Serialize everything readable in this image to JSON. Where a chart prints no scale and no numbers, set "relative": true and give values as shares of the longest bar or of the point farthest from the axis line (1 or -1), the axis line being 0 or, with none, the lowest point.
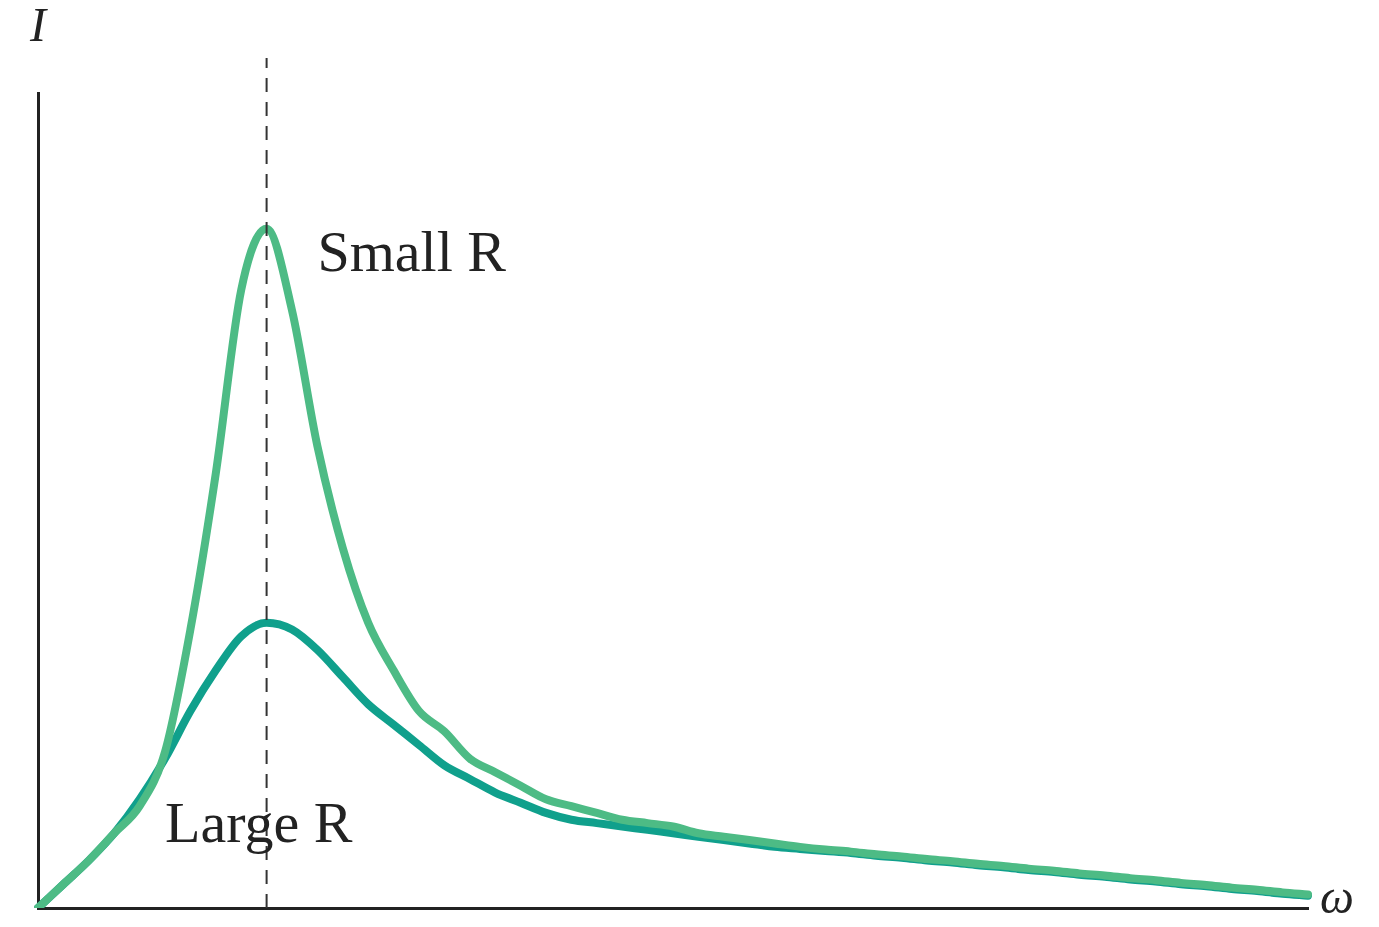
{
  "chart_data": {
    "type": "line",
    "relative": true,
    "xlabel": "ω",
    "ylabel": "I",
    "categories": [
      null,
      null,
      null,
      null,
      null,
      null,
      null,
      null,
      null,
      null,
      null,
      null,
      null,
      null,
      null,
      null,
      null,
      null,
      null,
      null,
      null,
      null,
      null,
      null,
      null,
      null,
      null,
      null,
      null,
      null,
      null,
      null,
      null,
      null,
      null,
      null,
      null,
      null,
      null,
      null,
      null,
      null,
      null,
      null,
      null,
      null,
      null,
      null,
      null,
      null,
      null
    ],
    "series": [
      {
        "color": "#4dbb85",
        "values": [
          0,
          0.035,
          0.07,
          0.11,
          0.15,
          0.23,
          0.41,
          0.64,
          0.91,
          1,
          0.88,
          0.68,
          0.53,
          0.42,
          0.35,
          0.29,
          0.26,
          0.22,
          0.2,
          0.18,
          0.16,
          0.15,
          0.14,
          0.13,
          0.125,
          0.12,
          0.11,
          0.105,
          0.1,
          0.095,
          0.09,
          0.086,
          0.083,
          0.079,
          0.076,
          0.072,
          0.069,
          0.065,
          0.062,
          0.058,
          0.055,
          0.051,
          0.048,
          0.044,
          0.041,
          0.037,
          0.034,
          0.03,
          0.027,
          0.023,
          0.02
        ]
      },
      {
        "color": "#10a08c",
        "values": [
          0,
          0.035,
          0.07,
          0.11,
          0.16,
          0.22,
          0.29,
          0.35,
          0.4,
          0.42,
          0.41,
          0.38,
          0.34,
          0.3,
          0.27,
          0.24,
          0.21,
          0.19,
          0.17,
          0.155,
          0.14,
          0.13,
          0.125,
          0.12,
          0.115,
          0.11,
          0.105,
          0.1,
          0.095,
          0.09,
          0.087,
          0.084,
          0.081,
          0.077,
          0.074,
          0.07,
          0.067,
          0.063,
          0.06,
          0.056,
          0.053,
          0.049,
          0.046,
          0.042,
          0.039,
          0.035,
          0.032,
          0.028,
          0.025,
          0.021,
          0.018
        ]
      }
    ],
    "annotations": [
      "Small R",
      "Large R"
    ],
    "grid": false,
    "legend": false,
    "marker": "none",
    "line_style": "solid"
  }
}
